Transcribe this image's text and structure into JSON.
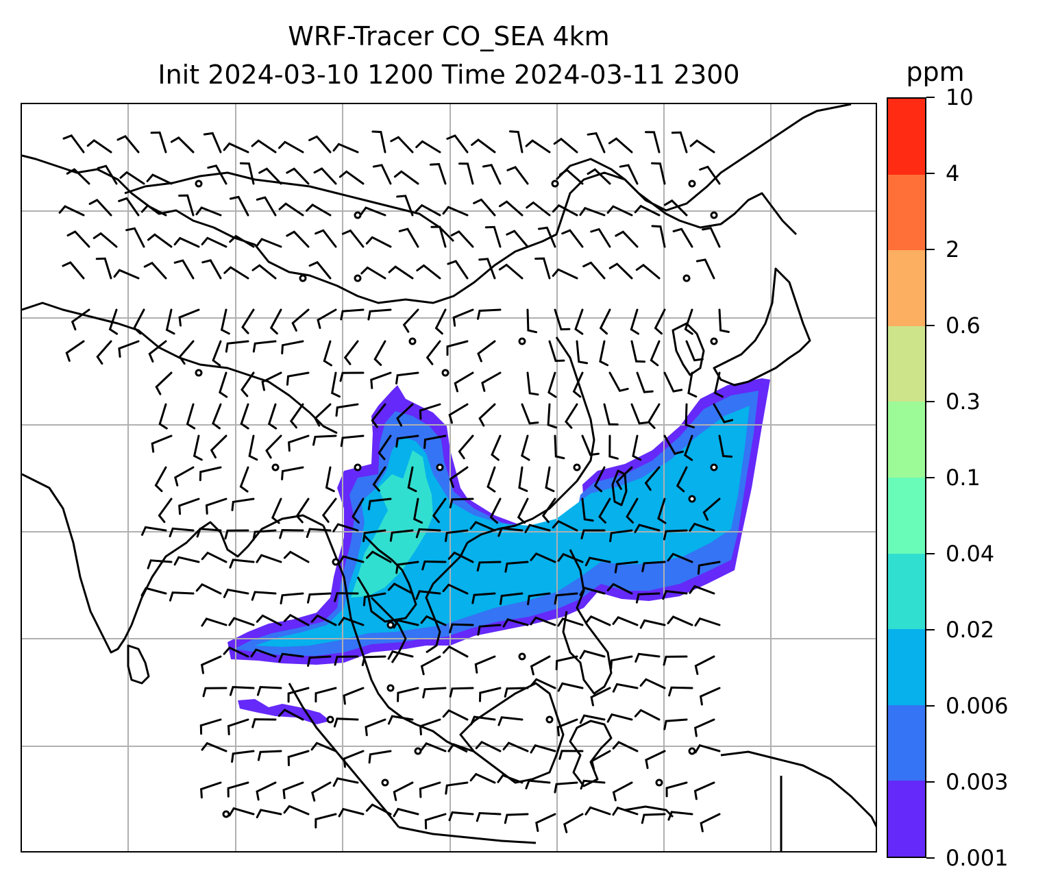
{
  "title": {
    "line1": "WRF-Tracer CO_SEA 4km",
    "line2": "Init 2024-03-10 1200 Time 2024-03-11 2300"
  },
  "colorbar": {
    "unit": "ppm",
    "levels": [
      "0.001",
      "0.003",
      "0.006",
      "0.02",
      "0.04",
      "0.1",
      "0.3",
      "0.6",
      "2",
      "4",
      "10"
    ],
    "colors": [
      "#6529f9",
      "#3574f4",
      "#06b1ec",
      "#31dfd0",
      "#69fcb8",
      "#9cfa97",
      "#cde48b",
      "#fcae61",
      "#fe7038",
      "#ff2c13"
    ]
  },
  "map": {
    "gridlines": true,
    "tracer_fill_colors": {
      "low": "#6529f9",
      "mid": "#3574f4",
      "high": "#06b1ec",
      "peak": "#31dfd0",
      "max": "#69fcb8"
    },
    "overlay": "wind-barbs",
    "coastline_color": "#000000"
  }
}
